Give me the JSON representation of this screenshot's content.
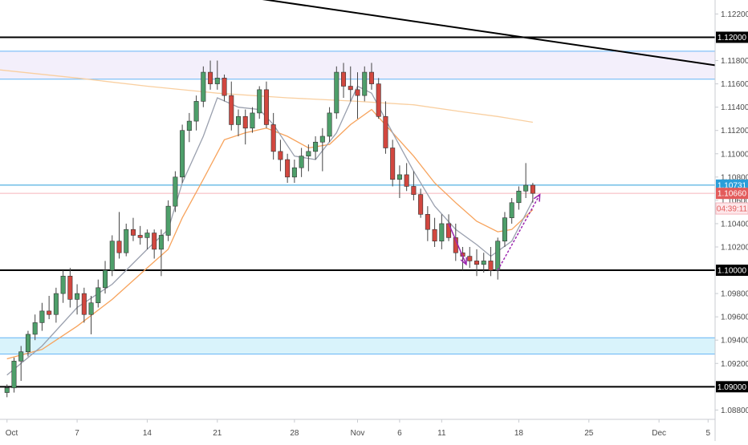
{
  "chart_data": {
    "type": "candlestick",
    "instrument_note": "",
    "colors": {
      "up_body": "#4e9f6a",
      "down_body": "#d2473f",
      "ma_fast": "#9aa0ae",
      "ma_mid": "#f7a35c",
      "ma_slow": "#f9cfa0",
      "zone_top_fill": "#f3effb",
      "zone_bottom_fill": "#d9f3fb",
      "zone_border": "#64b5f6",
      "level_line": "#000000",
      "current_price_line": "#f6b4bb",
      "ref_price_line": "#2a9ed9",
      "arrow": "#9c27b0",
      "label_blue": "#2a9ed9",
      "label_red": "#e35b5b",
      "label_pink": "#f6b4bb"
    },
    "y_axis": {
      "range": [
        1.0872,
        1.1232
      ],
      "ticks": [
        "1.08800",
        "1.09000",
        "1.09200",
        "1.09400",
        "1.09600",
        "1.09800",
        "1.10000",
        "1.10200",
        "1.10400",
        "1.10600",
        "1.10800",
        "1.11000",
        "1.11200",
        "1.11400",
        "1.11600",
        "1.11800",
        "1.12000",
        "1.12200"
      ]
    },
    "x_axis": {
      "labels": [
        {
          "text": "Oct",
          "index": 0
        },
        {
          "text": "7",
          "index": 10
        },
        {
          "text": "14",
          "index": 20
        },
        {
          "text": "21",
          "index": 30
        },
        {
          "text": "28",
          "index": 41
        },
        {
          "text": "Nov",
          "index": 50
        },
        {
          "text": "6",
          "index": 56
        },
        {
          "text": "11",
          "index": 62
        },
        {
          "text": "18",
          "index": 73
        },
        {
          "text": "25",
          "index": 83
        },
        {
          "text": "Dec",
          "index": 93
        },
        {
          "text": "5",
          "index": 100
        }
      ],
      "index_range": [
        -1,
        101
      ]
    },
    "candles": [
      [
        1.0895,
        1.0902,
        1.0891,
        1.0899
      ],
      [
        1.0899,
        1.0925,
        1.0895,
        1.0922
      ],
      [
        1.0922,
        1.0935,
        1.0905,
        1.093
      ],
      [
        1.093,
        1.0948,
        1.0926,
        1.0945
      ],
      [
        1.0945,
        1.0962,
        1.094,
        1.0955
      ],
      [
        1.0955,
        1.0972,
        1.0948,
        1.0965
      ],
      [
        1.0965,
        1.0978,
        1.0958,
        1.0962
      ],
      [
        1.0962,
        1.0985,
        1.0955,
        1.098
      ],
      [
        1.098,
        1.1,
        1.0972,
        1.0995
      ],
      [
        1.0995,
        1.1002,
        1.0968,
        1.0975
      ],
      [
        1.0975,
        1.0988,
        1.0962,
        1.098
      ],
      [
        1.098,
        1.0985,
        1.0955,
        1.0962
      ],
      [
        1.0962,
        1.0978,
        1.0945,
        1.0972
      ],
      [
        1.0972,
        1.0992,
        1.0968,
        1.0985
      ],
      [
        1.0985,
        1.1008,
        1.098,
        1.1
      ],
      [
        1.1,
        1.103,
        1.0995,
        1.1025
      ],
      [
        1.1025,
        1.105,
        1.101,
        1.1015
      ],
      [
        1.1015,
        1.104,
        1.1012,
        1.1035
      ],
      [
        1.1035,
        1.1045,
        1.1025,
        1.103
      ],
      [
        1.103,
        1.1038,
        1.1022,
        1.1028
      ],
      [
        1.1028,
        1.1035,
        1.1018,
        1.1032
      ],
      [
        1.1032,
        1.1035,
        1.101,
        1.1018
      ],
      [
        1.1018,
        1.1035,
        1.0995,
        1.103
      ],
      [
        1.103,
        1.106,
        1.1025,
        1.1055
      ],
      [
        1.1055,
        1.1085,
        1.105,
        1.108
      ],
      [
        1.108,
        1.1125,
        1.1075,
        1.112
      ],
      [
        1.112,
        1.1135,
        1.111,
        1.1128
      ],
      [
        1.1128,
        1.115,
        1.112,
        1.1145
      ],
      [
        1.1145,
        1.1175,
        1.114,
        1.117
      ],
      [
        1.117,
        1.118,
        1.1155,
        1.116
      ],
      [
        1.116,
        1.118,
        1.1155,
        1.1165
      ],
      [
        1.1165,
        1.1168,
        1.1145,
        1.115
      ],
      [
        1.115,
        1.1162,
        1.112,
        1.1125
      ],
      [
        1.1125,
        1.1138,
        1.1115,
        1.1132
      ],
      [
        1.1132,
        1.1138,
        1.1108,
        1.1122
      ],
      [
        1.1122,
        1.114,
        1.1118,
        1.1135
      ],
      [
        1.1135,
        1.1158,
        1.113,
        1.1155
      ],
      [
        1.1155,
        1.1162,
        1.1122,
        1.1125
      ],
      [
        1.1125,
        1.1135,
        1.1095,
        1.1102
      ],
      [
        1.1102,
        1.1112,
        1.1085,
        1.1095
      ],
      [
        1.1095,
        1.11,
        1.1075,
        1.108
      ],
      [
        1.108,
        1.1095,
        1.1075,
        1.1088
      ],
      [
        1.1088,
        1.1105,
        1.108,
        1.1098
      ],
      [
        1.1098,
        1.1108,
        1.1085,
        1.1102
      ],
      [
        1.1102,
        1.1115,
        1.1095,
        1.111
      ],
      [
        1.111,
        1.1122,
        1.1085,
        1.1115
      ],
      [
        1.1115,
        1.114,
        1.111,
        1.1135
      ],
      [
        1.1135,
        1.1175,
        1.113,
        1.117
      ],
      [
        1.117,
        1.1178,
        1.1148,
        1.1158
      ],
      [
        1.1158,
        1.1175,
        1.1145,
        1.1155
      ],
      [
        1.1155,
        1.117,
        1.113,
        1.115
      ],
      [
        1.115,
        1.1175,
        1.1145,
        1.117
      ],
      [
        1.117,
        1.1178,
        1.1155,
        1.116
      ],
      [
        1.116,
        1.1165,
        1.113,
        1.1132
      ],
      [
        1.1132,
        1.1145,
        1.11,
        1.1105
      ],
      [
        1.1105,
        1.1112,
        1.1072,
        1.1078
      ],
      [
        1.1078,
        1.109,
        1.1062,
        1.1082
      ],
      [
        1.1082,
        1.1092,
        1.1068,
        1.1072
      ],
      [
        1.1072,
        1.1085,
        1.106,
        1.1065
      ],
      [
        1.1065,
        1.107,
        1.1045,
        1.1048
      ],
      [
        1.1048,
        1.1055,
        1.1025,
        1.1035
      ],
      [
        1.1035,
        1.1045,
        1.102,
        1.1025
      ],
      [
        1.1025,
        1.1048,
        1.1018,
        1.104
      ],
      [
        1.104,
        1.1048,
        1.1025,
        1.1028
      ],
      [
        1.1028,
        1.104,
        1.1008,
        1.1015
      ],
      [
        1.1015,
        1.102,
        1.1,
        1.1012
      ],
      [
        1.1012,
        1.102,
        1.1002,
        1.1008
      ],
      [
        1.1008,
        1.1018,
        1.0995,
        1.1005
      ],
      [
        1.1005,
        1.1015,
        1.0998,
        1.1008
      ],
      [
        1.1008,
        1.102,
        1.0995,
        1.1
      ],
      [
        1.1,
        1.1028,
        1.0992,
        1.1025
      ],
      [
        1.1025,
        1.105,
        1.102,
        1.1045
      ],
      [
        1.1045,
        1.1062,
        1.104,
        1.1058
      ],
      [
        1.1058,
        1.1072,
        1.1052,
        1.1068
      ],
      [
        1.1068,
        1.1092,
        1.1062,
        1.1073
      ],
      [
        1.1073,
        1.1075,
        1.1058,
        1.1066
      ]
    ],
    "ma_fast": [
      [
        0,
        1.091
      ],
      [
        5,
        1.0935
      ],
      [
        10,
        1.0968
      ],
      [
        15,
        1.0988
      ],
      [
        20,
        1.1018
      ],
      [
        23,
        1.1035
      ],
      [
        25,
        1.1075
      ],
      [
        28,
        1.1115
      ],
      [
        30,
        1.1148
      ],
      [
        33,
        1.114
      ],
      [
        36,
        1.1138
      ],
      [
        38,
        1.1125
      ],
      [
        41,
        1.1098
      ],
      [
        44,
        1.1095
      ],
      [
        47,
        1.1118
      ],
      [
        50,
        1.1158
      ],
      [
        52,
        1.1152
      ],
      [
        55,
        1.1118
      ],
      [
        58,
        1.1085
      ],
      [
        61,
        1.1055
      ],
      [
        64,
        1.1035
      ],
      [
        67,
        1.1022
      ],
      [
        69,
        1.1012
      ],
      [
        72,
        1.1025
      ],
      [
        75,
        1.106
      ]
    ],
    "ma_mid": [
      [
        0,
        1.0924
      ],
      [
        5,
        1.0932
      ],
      [
        10,
        1.0952
      ],
      [
        15,
        1.0975
      ],
      [
        20,
        1.1002
      ],
      [
        23,
        1.1018
      ],
      [
        25,
        1.1045
      ],
      [
        28,
        1.1078
      ],
      [
        31,
        1.1112
      ],
      [
        34,
        1.1118
      ],
      [
        37,
        1.1122
      ],
      [
        40,
        1.1115
      ],
      [
        43,
        1.1105
      ],
      [
        46,
        1.1108
      ],
      [
        49,
        1.1125
      ],
      [
        52,
        1.1138
      ],
      [
        55,
        1.1118
      ],
      [
        58,
        1.1098
      ],
      [
        61,
        1.1075
      ],
      [
        64,
        1.1058
      ],
      [
        67,
        1.1042
      ],
      [
        70,
        1.1033
      ],
      [
        72,
        1.1035
      ],
      [
        75,
        1.1052
      ]
    ],
    "ma_slow": [
      [
        -1,
        1.1172
      ],
      [
        10,
        1.1165
      ],
      [
        20,
        1.1158
      ],
      [
        30,
        1.1152
      ],
      [
        40,
        1.1148
      ],
      [
        50,
        1.1145
      ],
      [
        58,
        1.1142
      ],
      [
        65,
        1.1136
      ],
      [
        70,
        1.1132
      ],
      [
        75,
        1.1127
      ]
    ],
    "horizontal_levels": [
      1.12,
      1.1,
      1.09
    ],
    "zones": [
      {
        "name": "resistance-zone",
        "top": 1.1188,
        "bottom": 1.1164
      },
      {
        "name": "support-zone",
        "top": 1.0942,
        "bottom": 1.0928
      }
    ],
    "trendline": {
      "from": [
        31.5,
        1.1237
      ],
      "to": [
        101,
        1.1176
      ]
    },
    "price_lines": [
      {
        "name": "ref-line",
        "value": 1.10731
      },
      {
        "name": "current-line",
        "value": 1.1066
      }
    ],
    "price_labels": [
      {
        "name": "level-label-1.12",
        "text": "1.12000",
        "value": 1.12,
        "style": "level"
      },
      {
        "name": "level-label-1.10",
        "text": "1.10000",
        "value": 1.1,
        "style": "level"
      },
      {
        "name": "level-label-1.09",
        "text": "1.09000",
        "value": 1.09,
        "style": "level"
      },
      {
        "name": "ref-price-label",
        "text": "1.10731",
        "value": 1.10731,
        "style": "blue"
      },
      {
        "name": "current-price-label",
        "text": "1.10660",
        "value": 1.1066,
        "style": "red"
      },
      {
        "name": "countdown-label",
        "text": "04:39:11",
        "value": 1.1053,
        "style": "pink"
      }
    ],
    "arrows": [
      {
        "name": "down-arrow",
        "from": [
          63,
          1.104
        ],
        "to": [
          65.5,
          1.1005
        ],
        "style": "solid"
      },
      {
        "name": "up-arrow",
        "from": [
          70,
          1.1
        ],
        "to": [
          76,
          1.1065
        ],
        "style": "dashed"
      }
    ]
  }
}
